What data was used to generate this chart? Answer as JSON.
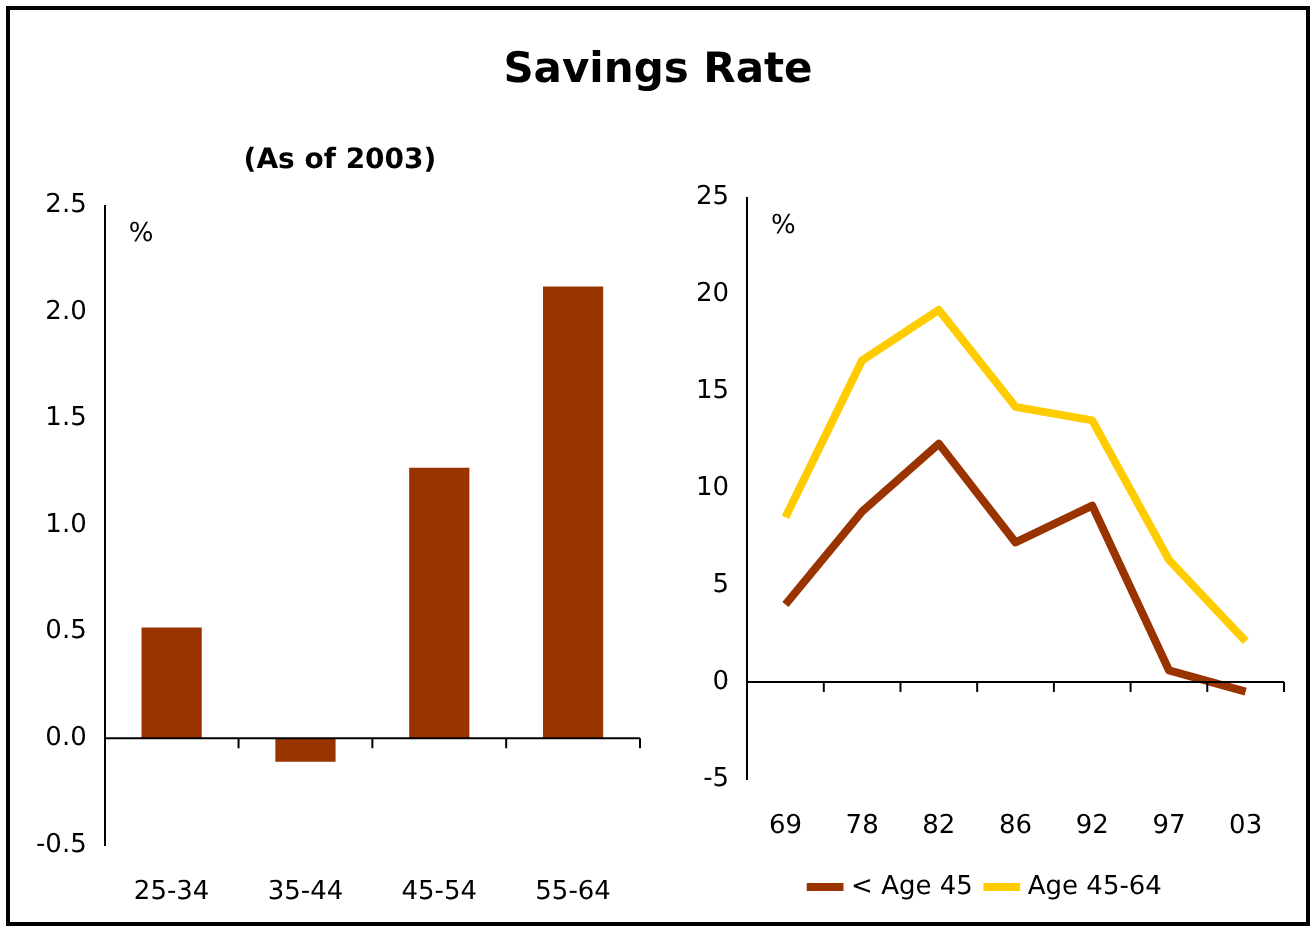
{
  "chart_data": [
    {
      "type": "bar",
      "title": "Savings Rate",
      "subtitle": "(As of 2003)",
      "ylabel": "%",
      "categories": [
        "25-34",
        "35-44",
        "45-54",
        "55-64"
      ],
      "series": [
        {
          "color": "#993300",
          "values": [
            0.52,
            -0.11,
            1.27,
            2.12
          ]
        }
      ],
      "ylim": [
        -0.5,
        2.5
      ],
      "yticks": [
        -0.5,
        {
          "value": 0,
          "label": "0.0"
        },
        0.5,
        {
          "value": 1,
          "label": "1.0"
        },
        1.5,
        {
          "value": 2,
          "label": "2.0"
        },
        2.5
      ]
    },
    {
      "type": "line",
      "ylabel": "%",
      "categories": [
        "69",
        "78",
        "82",
        "86",
        "92",
        "97",
        "03"
      ],
      "series": [
        {
          "name": "< Age 45",
          "color": "#993300",
          "values": [
            4.0,
            8.8,
            12.3,
            7.2,
            9.1,
            0.6,
            -0.5
          ]
        },
        {
          "name": "Age 45-64",
          "color": "#ffcc00",
          "values": [
            8.5,
            16.6,
            19.2,
            14.2,
            13.5,
            6.3,
            2.1
          ]
        }
      ],
      "ylim": [
        -5,
        25
      ],
      "yticks": [
        -5,
        0,
        5,
        10,
        15,
        20,
        25
      ],
      "legend": "bottom",
      "marker": "none",
      "line_style": "solid"
    }
  ]
}
